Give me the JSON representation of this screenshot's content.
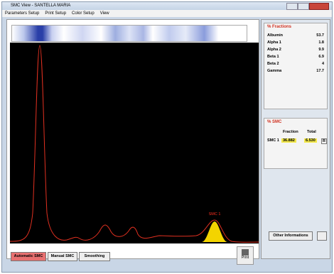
{
  "window": {
    "title": "SMC View - SANTELLA MARIA"
  },
  "menu": [
    "Parameters Setup",
    "Print Setup",
    "Color Setup",
    "View"
  ],
  "fractions": {
    "title": "% Fractions",
    "rows": [
      [
        "Albumin",
        "53.7"
      ],
      [
        "Alpha 1",
        "1.8"
      ],
      [
        "Alpha 2",
        "9.9"
      ],
      [
        "Beta 1",
        "6.9"
      ],
      [
        "Beta 2",
        "4"
      ],
      [
        "Gamma",
        "17.7"
      ]
    ]
  },
  "smc": {
    "title": "% SMC",
    "headers": [
      "Fraction",
      "Total"
    ],
    "rows": [
      [
        "SMC 1",
        "36.882",
        "6.530",
        "R"
      ]
    ]
  },
  "plot": {
    "peak_label": "SMC 1"
  },
  "buttons": {
    "other": "Other Informations",
    "automatic": "Automatic SMC",
    "manual": "Manual SMC",
    "smoothing": "Smoothing",
    "print": "Print"
  }
}
